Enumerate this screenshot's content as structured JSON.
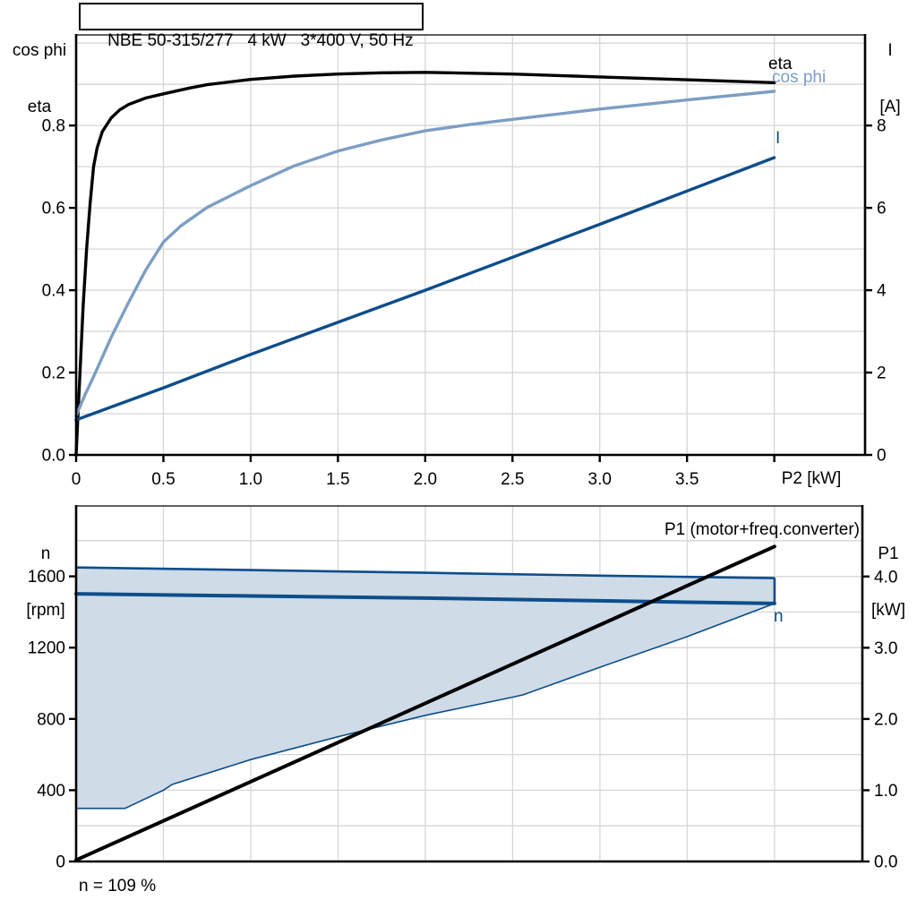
{
  "colors": {
    "black": "#000000",
    "steel_blue": "#7D9EC3",
    "dark_blue": "#0D4D8B",
    "band_fill": "#CFDBE7",
    "grid": "#D6D6D6"
  },
  "chart_data": [
    {
      "type": "line",
      "title": "NBE 50-315/277   4 kW   3*400 V, 50 Hz",
      "xlabel": "P2 [kW]",
      "ylabel_left": [
        "cos phi",
        "eta"
      ],
      "ylabel_right": [
        "I",
        "[A]"
      ],
      "xlim": [
        0,
        4.52
      ],
      "ylim_left": [
        0,
        1.02
      ],
      "ylim_right": [
        0,
        10.2
      ],
      "xticks": [
        0,
        0.5,
        1,
        1.5,
        2,
        2.5,
        3,
        3.5,
        4
      ],
      "xtick_labels": [
        "0",
        "0.5",
        "1.0",
        "1.5",
        "2.0",
        "2.5",
        "3.0",
        "3.5",
        ""
      ],
      "yticks_left": [
        0,
        0.2,
        0.4,
        0.6,
        0.8
      ],
      "ytick_labels_left": [
        "0.0",
        "0.2",
        "0.4",
        "0.6",
        "0.8"
      ],
      "yticks_right": [
        0,
        2,
        4,
        6,
        8
      ],
      "ytick_labels_right": [
        "0",
        "2",
        "4",
        "6",
        "8"
      ],
      "grid_x": [
        0.5,
        1,
        1.5,
        2,
        2.5,
        3,
        3.5,
        4
      ],
      "grid_y_left": [
        0.1,
        0.2,
        0.3,
        0.4,
        0.5,
        0.6,
        0.7,
        0.8,
        0.9,
        1.0
      ],
      "grid_on": true,
      "legend_position": "curve-end-labels",
      "series": [
        {
          "name": "eta",
          "label": "eta",
          "axis": "left",
          "color": "#000000",
          "width": 3.4,
          "points": [
            [
              0,
              0
            ],
            [
              0.01,
              0.09
            ],
            [
              0.02,
              0.18
            ],
            [
              0.04,
              0.36
            ],
            [
              0.06,
              0.5
            ],
            [
              0.08,
              0.61
            ],
            [
              0.1,
              0.7
            ],
            [
              0.12,
              0.745
            ],
            [
              0.15,
              0.785
            ],
            [
              0.2,
              0.818
            ],
            [
              0.25,
              0.838
            ],
            [
              0.3,
              0.851
            ],
            [
              0.4,
              0.867
            ],
            [
              0.5,
              0.877
            ],
            [
              0.65,
              0.891
            ],
            [
              0.75,
              0.899
            ],
            [
              1.0,
              0.912
            ],
            [
              1.25,
              0.92
            ],
            [
              1.5,
              0.925
            ],
            [
              1.75,
              0.928
            ],
            [
              2.0,
              0.929
            ],
            [
              2.5,
              0.925
            ],
            [
              3.0,
              0.918
            ],
            [
              3.5,
              0.911
            ],
            [
              4.0,
              0.904
            ]
          ]
        },
        {
          "name": "cos phi",
          "label": "cos phi",
          "axis": "left",
          "color": "#7D9EC3",
          "width": 3.4,
          "points": [
            [
              0,
              0.095
            ],
            [
              0.05,
              0.145
            ],
            [
              0.1,
              0.19
            ],
            [
              0.2,
              0.285
            ],
            [
              0.3,
              0.37
            ],
            [
              0.4,
              0.45
            ],
            [
              0.5,
              0.517
            ],
            [
              0.6,
              0.556
            ],
            [
              0.75,
              0.601
            ],
            [
              1.0,
              0.654
            ],
            [
              1.25,
              0.702
            ],
            [
              1.5,
              0.738
            ],
            [
              1.75,
              0.765
            ],
            [
              2.0,
              0.787
            ],
            [
              2.25,
              0.802
            ],
            [
              2.5,
              0.815
            ],
            [
              3.0,
              0.84
            ],
            [
              3.5,
              0.862
            ],
            [
              4.0,
              0.883
            ]
          ]
        },
        {
          "name": "I",
          "label": "I",
          "axis": "right",
          "color": "#0D4D8B",
          "width": 3.4,
          "points": [
            [
              0,
              0.85
            ],
            [
              0.5,
              1.63
            ],
            [
              1.0,
              2.44
            ],
            [
              1.5,
              3.22
            ],
            [
              2.0,
              4.0
            ],
            [
              2.5,
              4.8
            ],
            [
              3.0,
              5.6
            ],
            [
              3.5,
              6.41
            ],
            [
              4.0,
              7.22
            ]
          ]
        }
      ]
    },
    {
      "type": "line",
      "title": "",
      "xlabel": "",
      "ylabel_left": [
        "n",
        "[rpm]"
      ],
      "ylabel_right": [
        "P1",
        "[kW]"
      ],
      "xlim": [
        0,
        4.503
      ],
      "ylim_left": [
        0,
        1995
      ],
      "ylim_right": [
        0,
        4.99
      ],
      "xticks": [],
      "xtick_labels": [],
      "yticks_left": [
        0,
        400,
        800,
        1200,
        1600
      ],
      "ytick_labels_left": [
        "0",
        "400",
        "800",
        "1200",
        "1600"
      ],
      "yticks_right": [
        0,
        1,
        2,
        3,
        4
      ],
      "ytick_labels_right": [
        "0.0",
        "1.0",
        "2.0",
        "3.0",
        "4.0"
      ],
      "grid_x": [
        0.5,
        1,
        1.5,
        2,
        2.5,
        3,
        3.5,
        4
      ],
      "grid_y_left": [
        200,
        400,
        600,
        800,
        1000,
        1200,
        1400,
        1600,
        1800
      ],
      "grid_on": true,
      "legend_position": "curve-end-labels",
      "band": {
        "name": "speed-range",
        "fill": "#CFDBE7",
        "stroke": "#0D4D8B",
        "upper": [
          [
            0,
            1650
          ],
          [
            1.0,
            1635
          ],
          [
            2.0,
            1620
          ],
          [
            3.0,
            1604
          ],
          [
            3.5,
            1597
          ],
          [
            4.0,
            1590
          ]
        ],
        "lower": [
          [
            0,
            298
          ],
          [
            0.28,
            298
          ],
          [
            0.5,
            400
          ],
          [
            0.55,
            432
          ],
          [
            1.0,
            572
          ],
          [
            1.5,
            700
          ],
          [
            2.0,
            820
          ],
          [
            2.5,
            922
          ],
          [
            2.56,
            935
          ],
          [
            3.0,
            1090
          ],
          [
            3.5,
            1262
          ],
          [
            4.0,
            1448
          ]
        ]
      },
      "series": [
        {
          "name": "n",
          "label": "n",
          "axis": "left",
          "color": "#0D4D8B",
          "width": 4,
          "points": [
            [
              0,
              1502
            ],
            [
              1.0,
              1490
            ],
            [
              2.0,
              1478
            ],
            [
              3.0,
              1463
            ],
            [
              4.0,
              1448
            ]
          ]
        },
        {
          "name": "P1",
          "label": "P1 (motor+freq.converter)",
          "axis": "right",
          "color": "#000000",
          "width": 4,
          "points": [
            [
              0,
              0.02
            ],
            [
              4.0,
              4.42
            ]
          ]
        }
      ],
      "caption": "n = 109 %"
    }
  ]
}
